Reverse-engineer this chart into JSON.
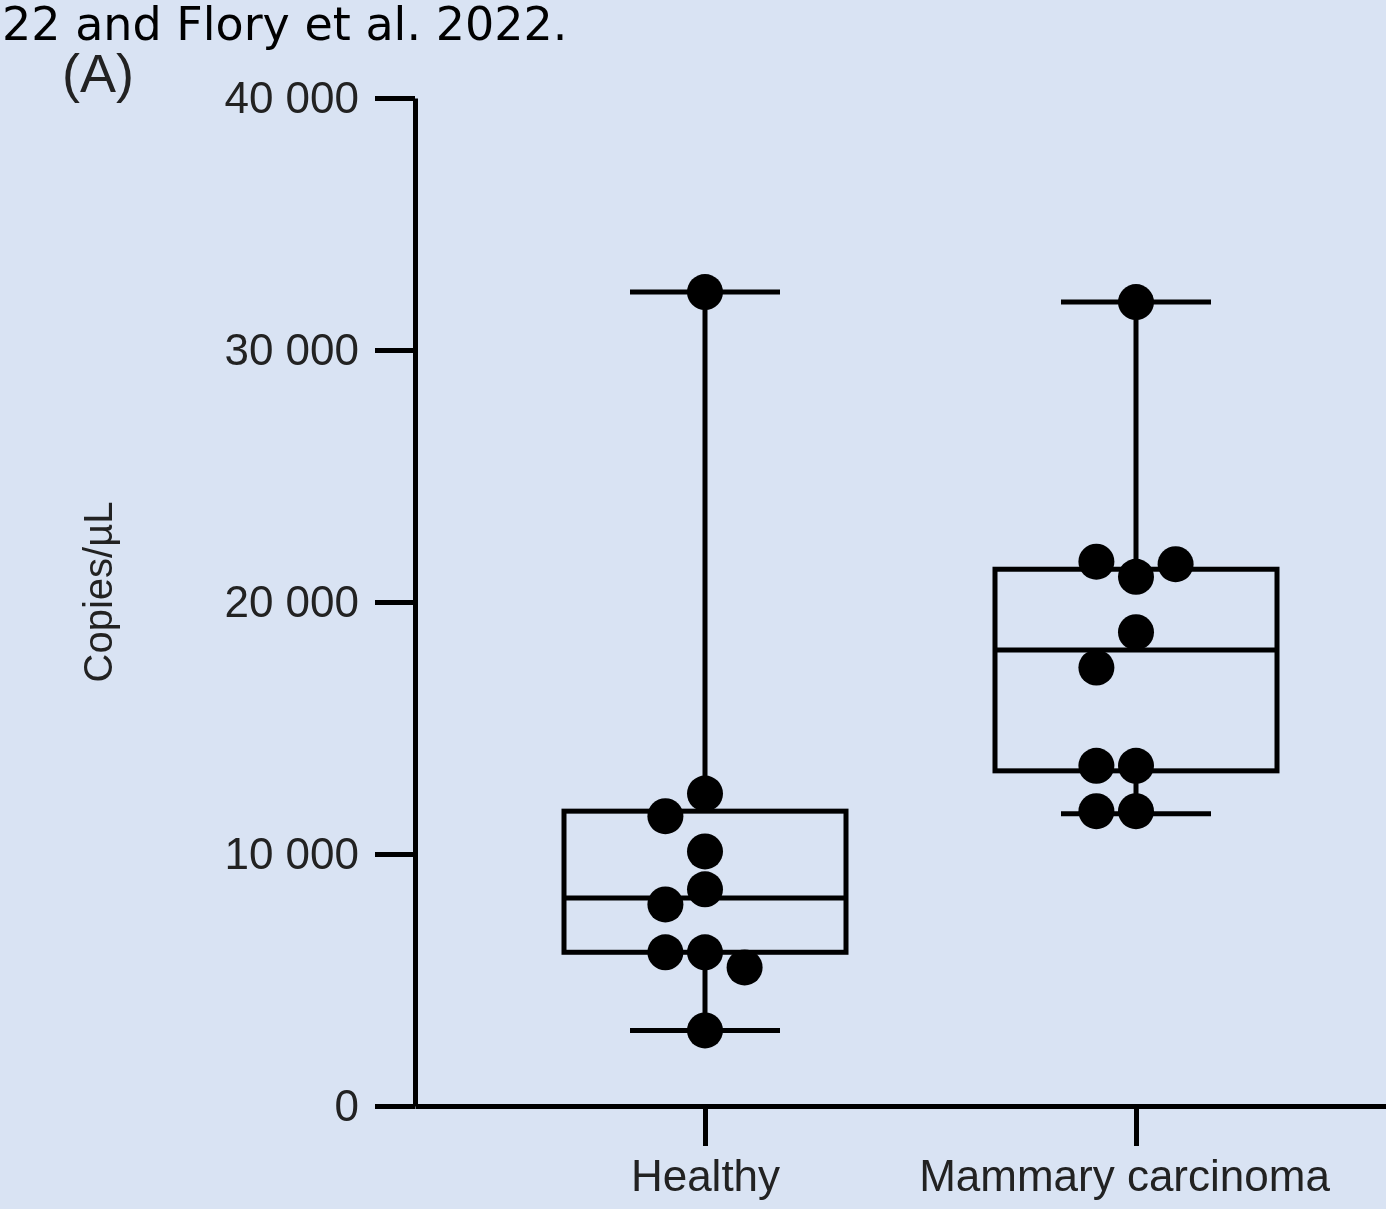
{
  "chart_data": {
    "type": "box",
    "title": "(A)",
    "annotations": [
      "22 and Flory et al. 2022."
    ],
    "ylabel": "Copies/µL",
    "categories": [
      "Healthy",
      "Mammary carcinoma"
    ],
    "boxes": [
      {
        "low": 3000,
        "q1": 6100,
        "median": 8250,
        "q3": 11700,
        "high": 32300
      },
      {
        "low": 11600,
        "q1": 13300,
        "median": 18100,
        "q3": 21300,
        "high": 31900
      }
    ],
    "series": [
      {
        "type": "scatter",
        "color": "#000000",
        "x": [
          "Healthy",
          "Healthy",
          "Healthy",
          "Healthy",
          "Healthy",
          "Healthy",
          "Healthy",
          "Healthy",
          "Healthy",
          "Healthy"
        ],
        "values": [
          32300,
          12400,
          11500,
          10100,
          8600,
          8000,
          6100,
          6100,
          5500,
          3000
        ]
      },
      {
        "type": "scatter",
        "color": "#000000",
        "x": [
          "Mammary carcinoma",
          "Mammary carcinoma",
          "Mammary carcinoma",
          "Mammary carcinoma",
          "Mammary carcinoma",
          "Mammary carcinoma",
          "Mammary carcinoma",
          "Mammary carcinoma",
          "Mammary carcinoma",
          "Mammary carcinoma"
        ],
        "values": [
          31900,
          21000,
          21600,
          21500,
          18800,
          17400,
          13500,
          13500,
          11700,
          11700
        ]
      }
    ],
    "marker": "circle",
    "ylim": [
      0,
      40000
    ],
    "yticks": [
      0,
      {
        "value": 10000,
        "label": "10 000"
      },
      {
        "value": 20000,
        "label": "20 000"
      },
      {
        "value": 30000,
        "label": "30 000"
      },
      {
        "value": 40000,
        "label": "40 000"
      }
    ],
    "grid": false
  }
}
